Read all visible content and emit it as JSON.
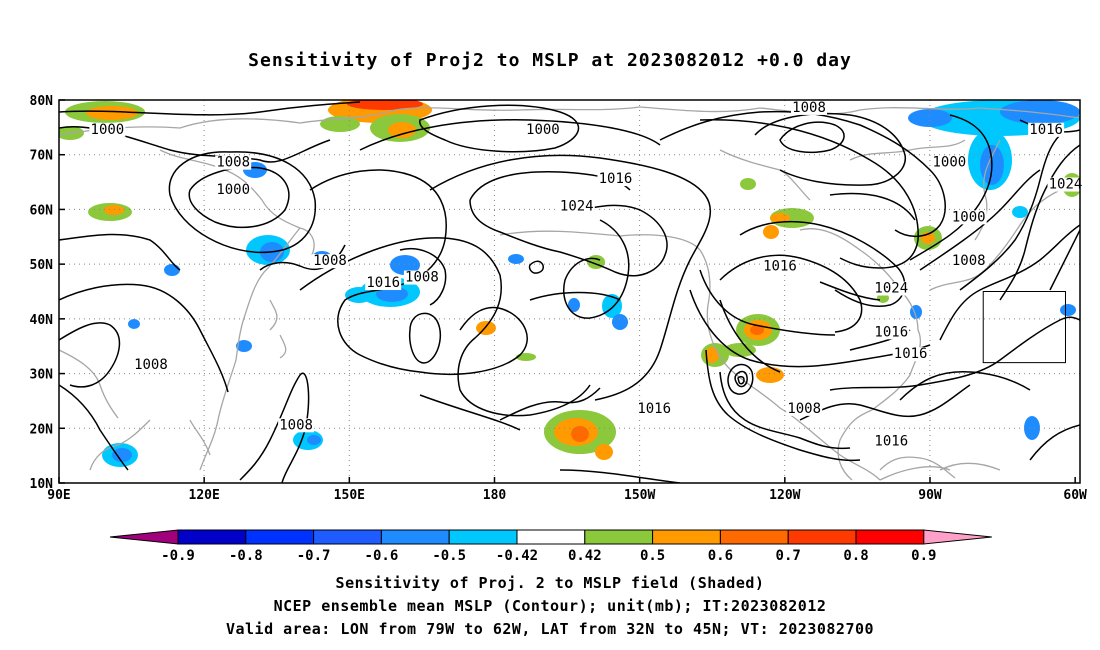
{
  "title": "Sensitivity of Proj2 to MSLP at 2023082012 +0.0 day",
  "map": {
    "lon_range": [
      90,
      301
    ],
    "lat_range": [
      10,
      80
    ],
    "lon_ticks": [
      {
        "lon": 90,
        "label": "90E"
      },
      {
        "lon": 120,
        "label": "120E"
      },
      {
        "lon": 150,
        "label": "150E"
      },
      {
        "lon": 180,
        "label": "180"
      },
      {
        "lon": 210,
        "label": "150W"
      },
      {
        "lon": 240,
        "label": "120W"
      },
      {
        "lon": 270,
        "label": "90W"
      },
      {
        "lon": 300,
        "label": "60W"
      }
    ],
    "lat_ticks": [
      {
        "lat": 10,
        "label": "10N"
      },
      {
        "lat": 20,
        "label": "20N"
      },
      {
        "lat": 30,
        "label": "30N"
      },
      {
        "lat": 40,
        "label": "40N"
      },
      {
        "lat": 50,
        "label": "50N"
      },
      {
        "lat": 60,
        "label": "60N"
      },
      {
        "lat": 70,
        "label": "70N"
      },
      {
        "lat": 80,
        "label": "80N"
      }
    ],
    "grid": "dotted",
    "contour_labels": [
      {
        "text": "1000",
        "lon": 100,
        "lat": 74
      },
      {
        "text": "1008",
        "lon": 126,
        "lat": 68
      },
      {
        "text": "1000",
        "lon": 126,
        "lat": 63
      },
      {
        "text": "1000",
        "lon": 190,
        "lat": 74
      },
      {
        "text": "1008",
        "lon": 245,
        "lat": 78
      },
      {
        "text": "1016",
        "lon": 205,
        "lat": 65
      },
      {
        "text": "1024",
        "lon": 197,
        "lat": 60
      },
      {
        "text": "1000",
        "lon": 274,
        "lat": 68
      },
      {
        "text": "1016",
        "lon": 294,
        "lat": 74
      },
      {
        "text": "1024",
        "lon": 298,
        "lat": 64
      },
      {
        "text": "1000",
        "lon": 278,
        "lat": 58
      },
      {
        "text": "1008",
        "lon": 278,
        "lat": 50
      },
      {
        "text": "1008",
        "lon": 146,
        "lat": 50
      },
      {
        "text": "1016",
        "lon": 157,
        "lat": 46
      },
      {
        "text": "1008",
        "lon": 165,
        "lat": 47
      },
      {
        "text": "1016",
        "lon": 239,
        "lat": 49
      },
      {
        "text": "1024",
        "lon": 262,
        "lat": 45
      },
      {
        "text": "1016",
        "lon": 262,
        "lat": 37
      },
      {
        "text": "1016",
        "lon": 266,
        "lat": 33
      },
      {
        "text": "1008",
        "lon": 109,
        "lat": 31
      },
      {
        "text": "1008",
        "lon": 139,
        "lat": 20
      },
      {
        "text": "1016",
        "lon": 213,
        "lat": 23
      },
      {
        "text": "1008",
        "lon": 244,
        "lat": 23
      },
      {
        "text": "1016",
        "lon": 262,
        "lat": 17
      }
    ],
    "contour_color": "#000000",
    "coastline_color": "#a6a6a6",
    "valid_area_box": {
      "lon_min": 281,
      "lon_max": 298,
      "lat_min": 32,
      "lat_max": 45
    }
  },
  "colorbar": {
    "labels": [
      "-0.9",
      "-0.8",
      "-0.7",
      "-0.6",
      "-0.5",
      "-0.42",
      "0.42",
      "0.5",
      "0.6",
      "0.7",
      "0.8",
      "0.9"
    ],
    "colors": [
      "#a0007b",
      "#0000c8",
      "#0032ff",
      "#1f5cff",
      "#1e8cff",
      "#00c8ff",
      "#ffffff",
      "#8cc83c",
      "#ff9b00",
      "#ff6a00",
      "#ff3a00",
      "#ff0000",
      "#ffa0c8"
    ]
  },
  "captions": {
    "line1": "Sensitivity of Proj. 2 to MSLP field (Shaded)",
    "line2": "NCEP ensemble mean MSLP (Contour); unit(mb); IT:2023082012",
    "line3": "Valid area: LON from 79W to 62W, LAT from 32N to 45N; VT: 2023082700"
  }
}
